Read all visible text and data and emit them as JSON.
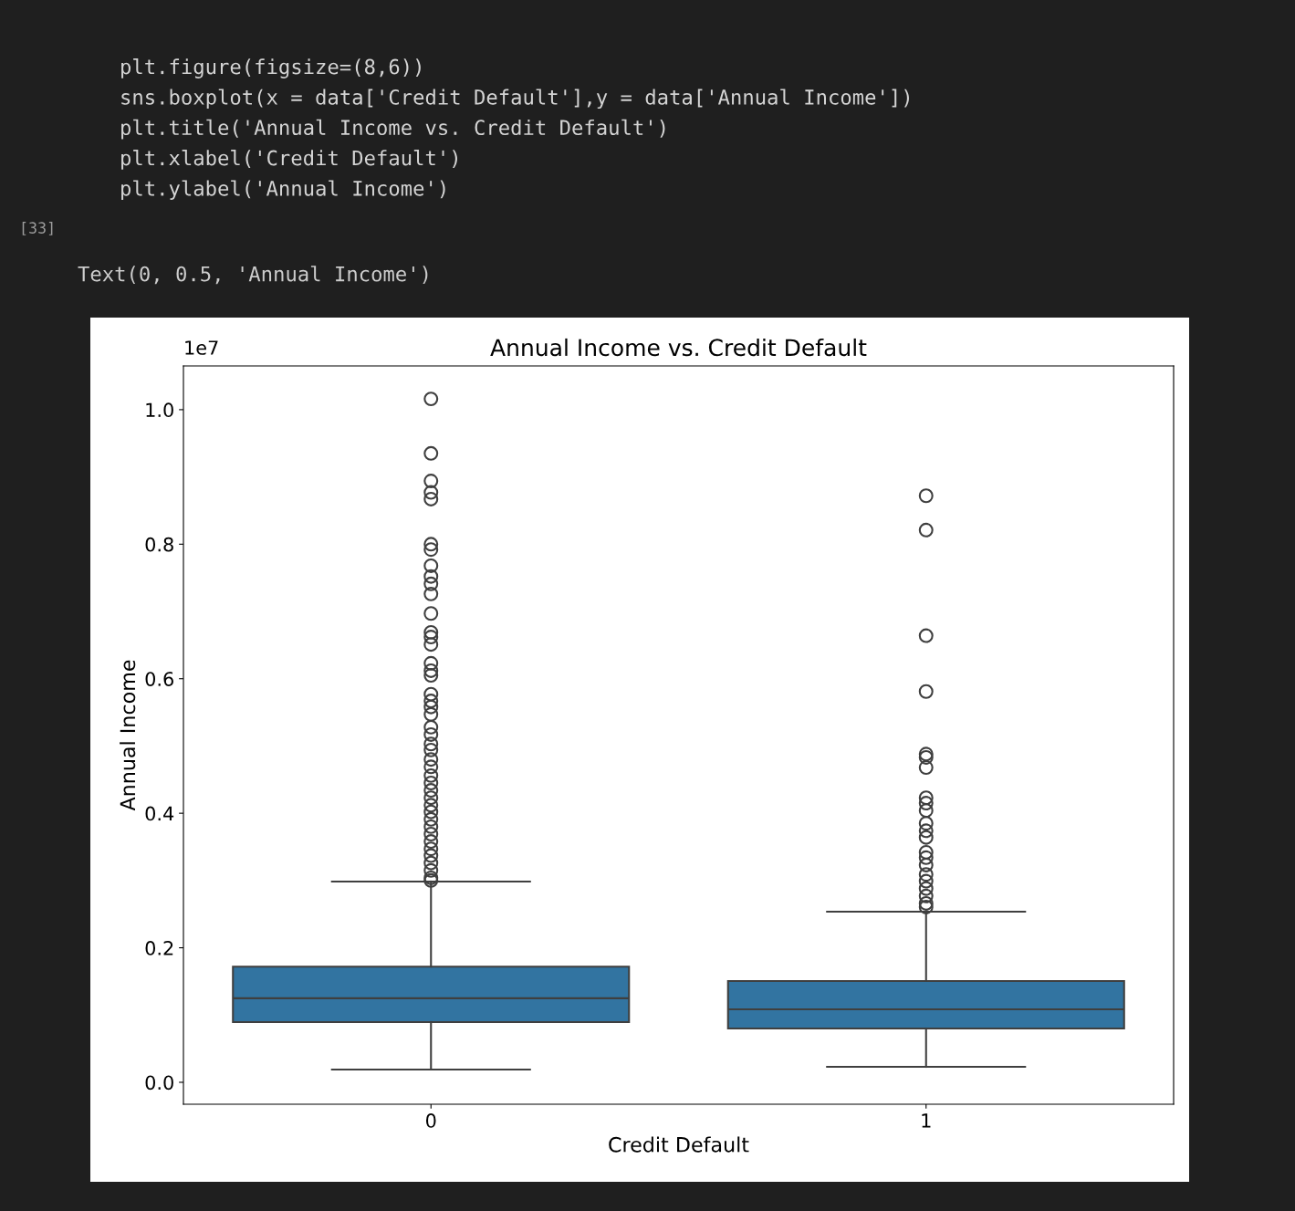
{
  "chart_data": {
    "type": "box",
    "title": "Annual Income vs. Credit Default",
    "xlabel": "Credit Default",
    "ylabel": "Annual Income",
    "categories": [
      "0",
      "1"
    ],
    "color": "#3274a1",
    "boxes": [
      {
        "low": 0.019,
        "q1": 0.0896,
        "median": 0.125,
        "q3": 0.172,
        "high": 0.2985,
        "outliers": [
          1.016,
          0.935,
          0.894,
          0.877,
          0.867,
          0.8,
          0.792,
          0.768,
          0.752,
          0.741,
          0.726,
          0.697,
          0.669,
          0.662,
          0.651,
          0.623,
          0.612,
          0.605,
          0.577,
          0.567,
          0.558,
          0.547,
          0.528,
          0.517,
          0.503,
          0.494,
          0.48,
          0.469,
          0.456,
          0.445,
          0.434,
          0.423,
          0.412,
          0.402,
          0.391,
          0.38,
          0.369,
          0.358,
          0.347,
          0.337,
          0.326,
          0.315,
          0.304,
          0.3
        ]
      },
      {
        "low": 0.023,
        "q1": 0.08,
        "median": 0.1085,
        "q3": 0.1506,
        "high": 0.2537,
        "outliers": [
          0.872,
          0.821,
          0.664,
          0.581,
          0.488,
          0.483,
          0.468,
          0.423,
          0.415,
          0.404,
          0.385,
          0.374,
          0.364,
          0.342,
          0.334,
          0.323,
          0.309,
          0.299,
          0.288,
          0.277,
          0.266,
          0.2605
        ]
      }
    ],
    "ylim": [
      -0.0326,
      1.065
    ],
    "yticks": [
      {
        "value": 0,
        "label": "0.0"
      },
      0.2,
      0.4,
      0.6,
      0.8,
      {
        "value": 1,
        "label": "1.0"
      }
    ],
    "grid": false,
    "annotations": [
      "plt.figure(figsize=(8,6))",
      "sns.boxplot(x = data['Credit Default'],y = data['Annual Income'])",
      "plt.title('Annual Income vs. Credit Default')",
      "plt.xlabel('Credit Default')",
      "plt.ylabel('Annual Income')",
      "[33]",
      "Text(0, 0.5, 'Annual Income')",
      "1e7"
    ]
  }
}
